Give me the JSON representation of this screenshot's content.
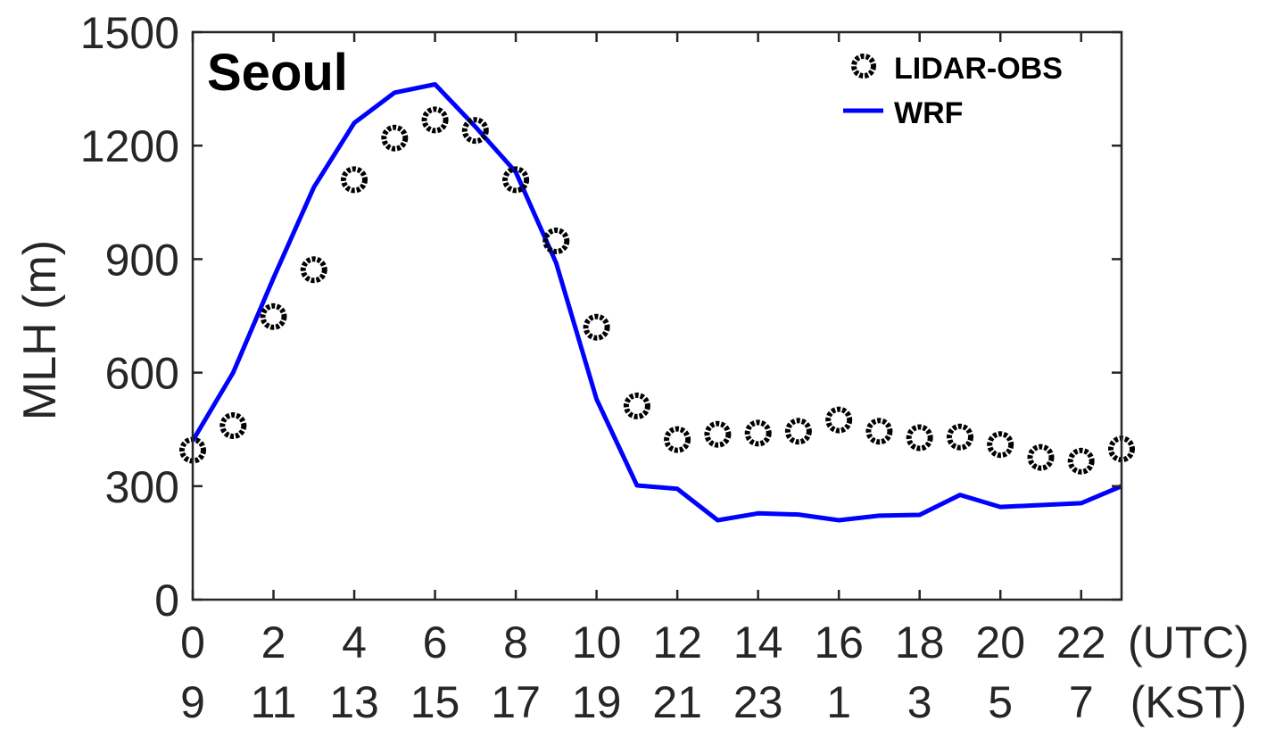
{
  "chart_data": {
    "type": "line",
    "title": "Seoul",
    "ylabel": "MLH (m)",
    "xlabel": "",
    "xlim": [
      0,
      23
    ],
    "ylim": [
      0,
      1500
    ],
    "yticks": [
      0,
      300,
      600,
      900,
      1200,
      1500
    ],
    "xticks_utc": [
      0,
      2,
      4,
      6,
      8,
      10,
      12,
      14,
      16,
      18,
      20,
      22
    ],
    "xticks_kst": [
      9,
      11,
      13,
      15,
      17,
      19,
      21,
      23,
      1,
      3,
      5,
      7
    ],
    "x_unit_label_utc": "(UTC)",
    "x_unit_label_kst": "(KST)",
    "legend_position": "top-right",
    "grid": false,
    "x": [
      0,
      1,
      2,
      3,
      4,
      5,
      6,
      7,
      8,
      9,
      10,
      11,
      12,
      13,
      14,
      15,
      16,
      17,
      18,
      19,
      20,
      21,
      22,
      23
    ],
    "series": [
      {
        "name": "LIDAR-OBS",
        "style": "markers",
        "color": "#000000",
        "values": [
          395,
          460,
          748,
          872,
          1110,
          1220,
          1268,
          1240,
          1110,
          948,
          720,
          512,
          423,
          437,
          440,
          445,
          475,
          445,
          428,
          430,
          410,
          376,
          366,
          398
        ]
      },
      {
        "name": "WRF",
        "style": "line",
        "color": "#0000ff",
        "values": [
          420,
          600,
          850,
          1090,
          1260,
          1340,
          1362,
          1250,
          1130,
          890,
          530,
          302,
          293,
          210,
          228,
          225,
          210,
          222,
          224,
          277,
          245,
          250,
          255,
          300
        ]
      }
    ]
  }
}
